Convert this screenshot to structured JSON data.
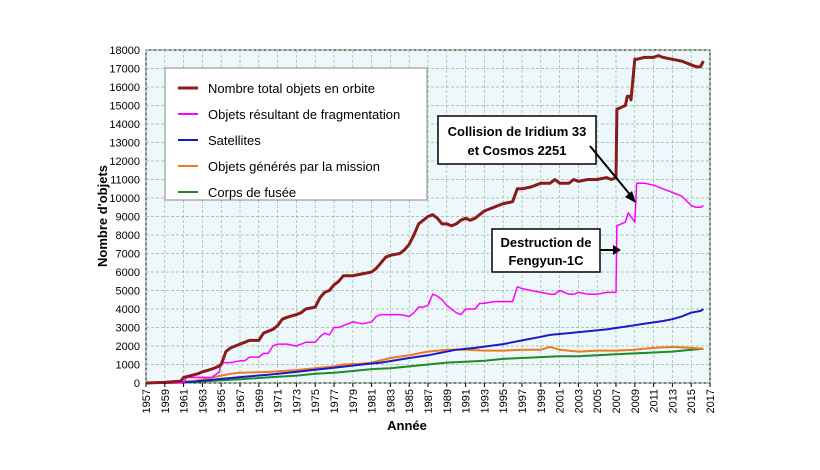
{
  "chart_data": {
    "type": "line",
    "title": "",
    "xlabel": "Année",
    "ylabel": "Nombre d'objets",
    "xlim": [
      1957,
      2017
    ],
    "ylim": [
      0,
      18000
    ],
    "grid": true,
    "legend_position": "top-left",
    "x_ticks": [
      "1957",
      "1959",
      "1961",
      "1963",
      "1965",
      "1967",
      "1969",
      "1971",
      "1973",
      "1975",
      "1977",
      "1979",
      "1981",
      "1983",
      "1985",
      "1987",
      "1989",
      "1991",
      "1993",
      "1995",
      "1997",
      "1999",
      "2001",
      "2003",
      "2005",
      "2007",
      "2009",
      "2011",
      "2013",
      "2015",
      "2017"
    ],
    "y_ticks": [
      "0",
      "1000",
      "2000",
      "3000",
      "4000",
      "5000",
      "6000",
      "7000",
      "8000",
      "9000",
      "10000",
      "11000",
      "12000",
      "13000",
      "14000",
      "15000",
      "16000",
      "17000",
      "18000"
    ],
    "series": [
      {
        "name": "Nombre total objets en orbite",
        "color": "#8b1a1a",
        "width": 3,
        "x": [
          1957,
          1959,
          1960.7,
          1961,
          1962.5,
          1963,
          1964,
          1964.7,
          1965,
          1965.5,
          1966,
          1967,
          1967.5,
          1968,
          1969,
          1969.5,
          1970,
          1970.5,
          1971,
          1971.5,
          1972,
          1973,
          1973.5,
          1974,
          1975,
          1975.5,
          1976,
          1976.5,
          1977,
          1977.5,
          1978,
          1979,
          1980,
          1981,
          1981.5,
          1982,
          1982.5,
          1983,
          1984,
          1984.5,
          1985,
          1985.5,
          1986,
          1986.5,
          1987,
          1987.5,
          1988,
          1988.5,
          1989,
          1989.5,
          1990,
          1990.5,
          1991,
          1991.5,
          1992,
          1993,
          1993.5,
          1994,
          1995,
          1996,
          1996.5,
          1997,
          1998,
          1999,
          2000,
          2000.5,
          2001,
          2002,
          2002.5,
          2003,
          2004,
          2005,
          2006,
          2006.5,
          2007,
          2007.1,
          2008,
          2008.2,
          2008.5,
          2008.6,
          2009,
          2009.2,
          2010,
          2011,
          2011.5,
          2012,
          2013,
          2014,
          2015,
          2015.5,
          2016,
          2016.3
        ],
        "y": [
          0,
          30,
          100,
          300,
          500,
          600,
          750,
          900,
          1000,
          1700,
          1900,
          2100,
          2200,
          2300,
          2300,
          2700,
          2800,
          2900,
          3100,
          3450,
          3550,
          3700,
          3800,
          4000,
          4100,
          4600,
          4900,
          5000,
          5300,
          5500,
          5800,
          5800,
          5900,
          6000,
          6200,
          6500,
          6800,
          6900,
          7000,
          7200,
          7500,
          8000,
          8600,
          8800,
          9000,
          9100,
          8900,
          8600,
          8600,
          8500,
          8600,
          8800,
          8900,
          8800,
          8900,
          9300,
          9400,
          9500,
          9700,
          9800,
          10500,
          10500,
          10600,
          10800,
          10800,
          11000,
          10800,
          10800,
          11000,
          10900,
          11000,
          11000,
          11100,
          11000,
          11100,
          14800,
          15000,
          15500,
          15500,
          15300,
          17500,
          17500,
          17600,
          17600,
          17700,
          17600,
          17500,
          17400,
          17200,
          17100,
          17100,
          17400
        ]
      },
      {
        "name": "Objets résultant de fragmentation",
        "color": "#ff00ff",
        "width": 1.5,
        "x": [
          1957,
          1961,
          1961.3,
          1964,
          1964.8,
          1965,
          1966,
          1967,
          1967.5,
          1968,
          1969,
          1969.5,
          1970,
          1970.5,
          1971,
          1972,
          1973,
          1974,
          1975,
          1975.5,
          1976,
          1976.5,
          1977,
          1977.5,
          1978,
          1979,
          1980,
          1981,
          1981.5,
          1982,
          1983,
          1984,
          1985,
          1985.5,
          1986,
          1986.5,
          1987,
          1987.5,
          1988,
          1988.5,
          1989,
          1990,
          1990.5,
          1991,
          1992,
          1992.5,
          1993,
          1994,
          1995,
          1996,
          1996.5,
          1997,
          1998,
          1999,
          2000,
          2000.5,
          2001,
          2002,
          2002.5,
          2003,
          2004,
          2005,
          2006,
          2007,
          2007.1,
          2008,
          2008.3,
          2009,
          2009.2,
          2010,
          2011,
          2012,
          2013,
          2014,
          2015,
          2015.5,
          2016,
          2016.3
        ],
        "y": [
          0,
          0,
          300,
          300,
          600,
          1100,
          1100,
          1200,
          1200,
          1400,
          1400,
          1600,
          1600,
          2000,
          2100,
          2100,
          2000,
          2200,
          2200,
          2500,
          2700,
          2600,
          3000,
          3000,
          3100,
          3300,
          3200,
          3300,
          3600,
          3700,
          3700,
          3700,
          3600,
          3800,
          4100,
          4100,
          4200,
          4800,
          4700,
          4500,
          4200,
          3800,
          3700,
          4000,
          4000,
          4300,
          4300,
          4400,
          4400,
          4400,
          5200,
          5100,
          5000,
          4900,
          4800,
          4800,
          5000,
          4800,
          4800,
          4900,
          4800,
          4800,
          4900,
          4900,
          8500,
          8700,
          9200,
          8700,
          10800,
          10800,
          10700,
          10500,
          10300,
          10100,
          9600,
          9500,
          9500,
          9600
        ]
      },
      {
        "name": "Satellites",
        "color": "#1a1ac8",
        "width": 2,
        "x": [
          1957,
          1960,
          1962,
          1963,
          1965,
          1967,
          1970,
          1973,
          1975,
          1977,
          1980,
          1982,
          1985,
          1987,
          1990,
          1992,
          1995,
          1997,
          1999,
          2000,
          2002,
          2004,
          2006,
          2008,
          2010,
          2012,
          2013,
          2014,
          2015,
          2016,
          2016.3
        ],
        "y": [
          0,
          20,
          70,
          120,
          220,
          320,
          450,
          600,
          720,
          820,
          1000,
          1100,
          1350,
          1500,
          1800,
          1900,
          2100,
          2300,
          2500,
          2600,
          2700,
          2800,
          2900,
          3050,
          3200,
          3350,
          3450,
          3600,
          3800,
          3900,
          4000
        ]
      },
      {
        "name": "Objets générés par la mission",
        "color": "#f07820",
        "width": 2,
        "x": [
          1957,
          1960,
          1962,
          1963,
          1965,
          1966,
          1967,
          1970,
          1973,
          1975,
          1977,
          1978,
          1980,
          1981,
          1983,
          1985,
          1986,
          1987,
          1989,
          1991,
          1993,
          1995,
          1997,
          1999,
          2000,
          2001,
          2003,
          2005,
          2007,
          2009,
          2011,
          2013,
          2015,
          2016.3
        ],
        "y": [
          0,
          30,
          100,
          200,
          400,
          500,
          550,
          600,
          700,
          800,
          900,
          1000,
          1050,
          1100,
          1350,
          1500,
          1600,
          1700,
          1800,
          1800,
          1750,
          1750,
          1800,
          1800,
          1950,
          1800,
          1700,
          1750,
          1750,
          1800,
          1900,
          1950,
          1900,
          1850
        ]
      },
      {
        "name": "Corps de fusée",
        "color": "#1f8a28",
        "width": 2,
        "x": [
          1957,
          1960,
          1962,
          1965,
          1967,
          1970,
          1973,
          1975,
          1977,
          1979,
          1981,
          1983,
          1985,
          1987,
          1989,
          1991,
          1993,
          1995,
          1997,
          1999,
          2001,
          2003,
          2005,
          2007,
          2009,
          2011,
          2013,
          2015,
          2016.3
        ],
        "y": [
          0,
          20,
          50,
          150,
          200,
          300,
          400,
          500,
          550,
          650,
          750,
          800,
          900,
          1000,
          1100,
          1150,
          1200,
          1300,
          1350,
          1400,
          1450,
          1450,
          1500,
          1550,
          1600,
          1650,
          1700,
          1800,
          1850
        ]
      }
    ],
    "annotations": [
      {
        "lines": [
          "Collision de Iridium 33",
          "et Cosmos 2251"
        ],
        "target_x": 2009.3,
        "target_y": 10000
      },
      {
        "lines": [
          "Destruction de",
          "Fengyun-1C"
        ],
        "target_x": 2007.2,
        "target_y": 7500
      }
    ]
  }
}
